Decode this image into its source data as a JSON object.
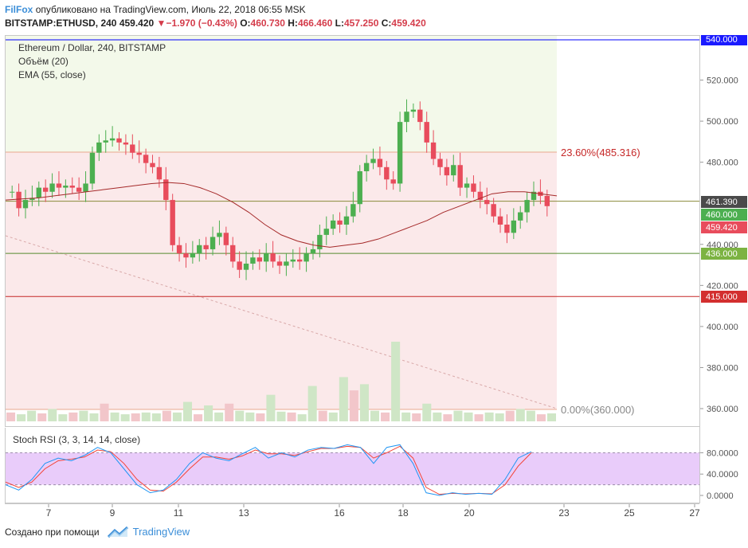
{
  "header": {
    "author": "FilFox",
    "published_text": "опубликовано на TradingView.com, Июль 22, 2018 06:55 MSK",
    "symbol": "BITSTAMP:ETHUSD, 240",
    "last": "459.420",
    "change_arrow": "▼",
    "change": "−1.970 (−0.43%)",
    "o_label": "O:",
    "o_val": "460.730",
    "h_label": "H:",
    "h_val": "466.460",
    "l_label": "L:",
    "l_val": "457.250",
    "c_label": "C:",
    "c_val": "459.420"
  },
  "legend": {
    "title": "Ethereum / Dollar, 240, BITSTAMP",
    "volume": "Объём (20)",
    "ema": "EMA (55, close)",
    "rsi": "Stoch RSI (3, 3, 14, 14, close)"
  },
  "fib_labels": {
    "top": "23.60%(485.316)",
    "bottom": "0.00%(360.000)"
  },
  "price_axis": {
    "ticks": [
      "520.000",
      "500.000",
      "480.000",
      "440.000",
      "420.000",
      "400.000",
      "380.000",
      "360.000"
    ],
    "badges": [
      "540.000",
      "461.390",
      "460.000",
      "459.420",
      "436.000",
      "415.000"
    ]
  },
  "rsi_axis": {
    "ticks": [
      "80.0000",
      "40.0000",
      "0.0000"
    ]
  },
  "time_axis": {
    "labels": [
      "7",
      "9",
      "11",
      "13",
      "16",
      "18",
      "20",
      "23",
      "25",
      "27"
    ]
  },
  "footer": {
    "created": "Создано при помощи",
    "brand": "TradingView"
  },
  "colors": {
    "up": "#4caf50",
    "down": "#e84c5c",
    "ema": "#a52a2a",
    "resistance": "#0000ff",
    "support_red": "#c62828",
    "support_green": "#558b2f",
    "fib_upper_zone": "#f3f9ea",
    "fib_lower_zone": "#fbe9ea",
    "rsi_band": "#e9ccfa",
    "rsi_k": "#2196f3",
    "rsi_d": "#f44336"
  },
  "chart_data": {
    "type": "candlestick",
    "symbol": "BITSTAMP:ETHUSD",
    "interval": "240",
    "ylim": [
      355,
      545
    ],
    "horizontal_levels": [
      540,
      461.39,
      436,
      415
    ],
    "fib_levels": [
      {
        "label": "23.60%",
        "value": 485.316
      },
      {
        "label": "0.00%",
        "value": 360
      }
    ],
    "ohlc_close_series": [
      466,
      458,
      462,
      463,
      468,
      466,
      470,
      468,
      469,
      468,
      466,
      470,
      485,
      490,
      491,
      492,
      490,
      489,
      485,
      484,
      480,
      478,
      472,
      462,
      440,
      436,
      434,
      436,
      440,
      438,
      444,
      446,
      440,
      432,
      428,
      431,
      434,
      432,
      436,
      432,
      430,
      432,
      433,
      432,
      436,
      438,
      445,
      448,
      452,
      450,
      454,
      460,
      476,
      480,
      482,
      478,
      472,
      470,
      500,
      505,
      506,
      500,
      490,
      482,
      478,
      474,
      479,
      468,
      470,
      466,
      462,
      460,
      454,
      450,
      446,
      452,
      456,
      462,
      466,
      464,
      459
    ],
    "ema_55": [
      462,
      462.5,
      463,
      464,
      465,
      466,
      467,
      468,
      469,
      470,
      470.5,
      470,
      468,
      465,
      461,
      456,
      450,
      445,
      442,
      440,
      439,
      440,
      441,
      443,
      446,
      449,
      452,
      456,
      459,
      462,
      465,
      466,
      466,
      465,
      464
    ],
    "volume_series": [
      10,
      8,
      12,
      9,
      14,
      8,
      10,
      12,
      9,
      20,
      10,
      8,
      9,
      10,
      9,
      12,
      10,
      22,
      8,
      18,
      10,
      20,
      12,
      10,
      9,
      30,
      11,
      10,
      8,
      40,
      12,
      10,
      50,
      35,
      42,
      12,
      10,
      90,
      10,
      9,
      20,
      10,
      8,
      12,
      10,
      8,
      10,
      9,
      12,
      14,
      12,
      8,
      9
    ],
    "stoch_rsi_k": [
      20,
      10,
      30,
      60,
      70,
      65,
      75,
      90,
      80,
      50,
      20,
      5,
      10,
      30,
      60,
      80,
      70,
      65,
      78,
      90,
      70,
      80,
      72,
      85,
      90,
      88,
      95,
      90,
      60,
      90,
      95,
      60,
      5,
      0,
      5,
      2,
      4,
      2,
      30,
      70,
      82
    ],
    "stoch_rsi_d": [
      25,
      15,
      25,
      50,
      65,
      68,
      72,
      85,
      82,
      60,
      30,
      10,
      8,
      25,
      50,
      72,
      72,
      68,
      74,
      85,
      78,
      78,
      75,
      82,
      88,
      88,
      92,
      90,
      70,
      80,
      92,
      70,
      15,
      2,
      4,
      3,
      4,
      3,
      20,
      55,
      80
    ]
  }
}
